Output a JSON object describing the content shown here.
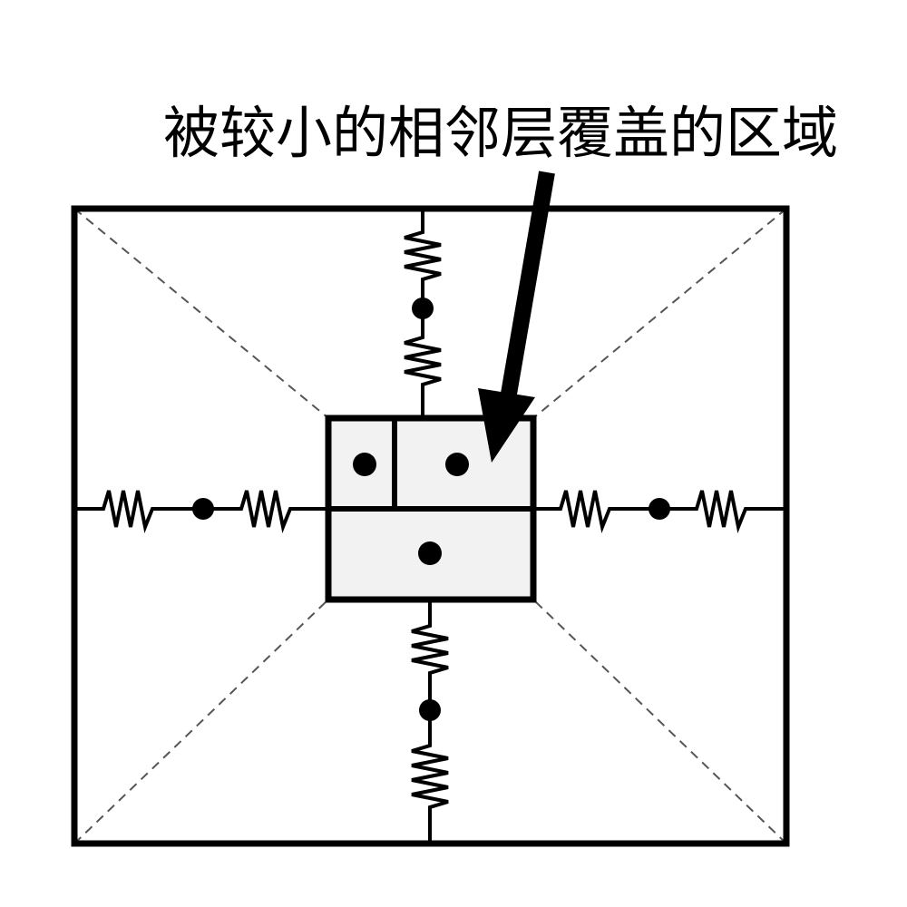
{
  "annotation": {
    "label": "被较小的相邻层覆盖的区域"
  },
  "colors": {
    "line": "#000000",
    "region_fill": "#f2f2f2",
    "background": "#ffffff",
    "dashed": "#555555"
  },
  "icons": {
    "spring": "resistor-zigzag",
    "node": "filled-circle",
    "pointer": "arrow"
  }
}
